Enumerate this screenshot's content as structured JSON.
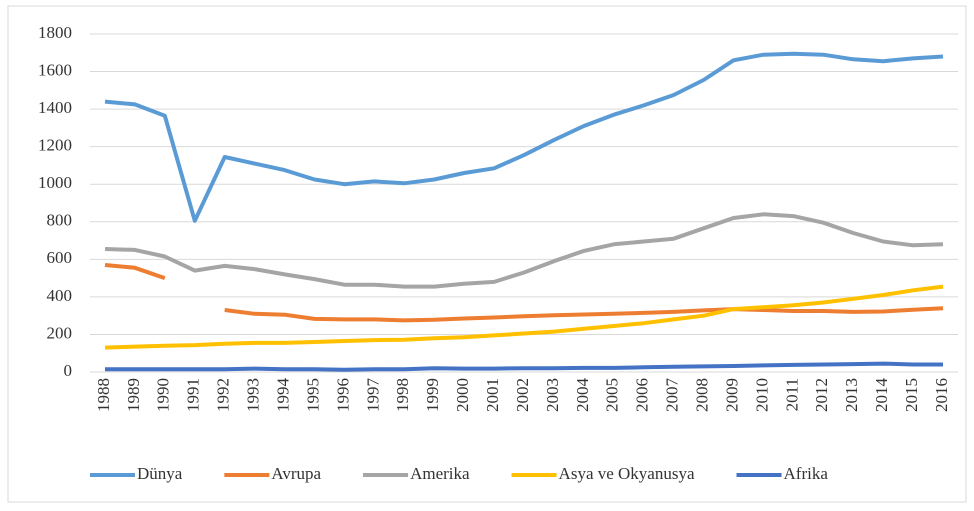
{
  "chart_data": {
    "type": "line",
    "categories": [
      "1988",
      "1989",
      "1990",
      "1991",
      "1992",
      "1993",
      "1994",
      "1995",
      "1996",
      "1997",
      "1998",
      "1999",
      "2000",
      "2001",
      "2002",
      "2003",
      "2004",
      "2005",
      "2006",
      "2007",
      "2008",
      "2009",
      "2010",
      "2011",
      "2012",
      "2013",
      "2014",
      "2015",
      "2016"
    ],
    "series": [
      {
        "name": "Dünya",
        "color": "#5b9bd5",
        "values": [
          1440,
          1425,
          1365,
          805,
          1145,
          1110,
          1075,
          1025,
          1000,
          1015,
          1005,
          1025,
          1060,
          1085,
          1155,
          1235,
          1310,
          1370,
          1420,
          1475,
          1555,
          1660,
          1690,
          1695,
          1690,
          1665,
          1655,
          1670,
          1680
        ]
      },
      {
        "name": "Avrupa",
        "color": "#ed7d31",
        "values": [
          570,
          555,
          500,
          null,
          330,
          310,
          305,
          283,
          280,
          280,
          275,
          278,
          285,
          290,
          297,
          302,
          306,
          310,
          315,
          320,
          328,
          335,
          330,
          325,
          325,
          320,
          322,
          332,
          340
        ]
      },
      {
        "name": "Amerika",
        "color": "#a5a5a5",
        "values": [
          655,
          650,
          615,
          540,
          565,
          548,
          520,
          495,
          465,
          465,
          455,
          455,
          470,
          480,
          530,
          590,
          645,
          680,
          695,
          710,
          765,
          820,
          840,
          830,
          795,
          740,
          695,
          675,
          680
        ]
      },
      {
        "name": "Asya ve Okyanusya",
        "color": "#ffc000",
        "values": [
          130,
          135,
          140,
          143,
          150,
          155,
          155,
          160,
          165,
          170,
          172,
          180,
          185,
          195,
          205,
          215,
          230,
          245,
          260,
          280,
          300,
          335,
          345,
          355,
          370,
          390,
          410,
          435,
          455
        ]
      },
      {
        "name": "Afrika",
        "color": "#4472c4",
        "values": [
          15,
          15,
          15,
          15,
          15,
          18,
          15,
          15,
          12,
          15,
          15,
          20,
          18,
          18,
          20,
          20,
          22,
          22,
          25,
          28,
          30,
          32,
          35,
          38,
          40,
          42,
          45,
          40,
          40
        ]
      }
    ],
    "ylim": [
      0,
      1800
    ],
    "yticks": [
      0,
      200,
      400,
      600,
      800,
      1000,
      1200,
      1400,
      1600,
      1800
    ],
    "grid": true,
    "legend": "bottom"
  }
}
